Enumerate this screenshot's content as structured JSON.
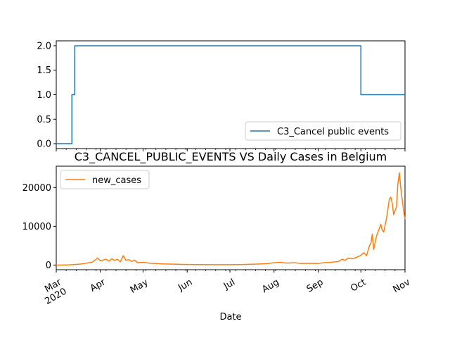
{
  "chart_data": [
    {
      "type": "line",
      "title": "",
      "xlabel": "",
      "ylabel": "",
      "ylim": [
        -0.1,
        2.1
      ],
      "xlim": [
        "2020-03-01",
        "2020-11-01"
      ],
      "yticks": [
        0.0,
        0.5,
        1.0,
        1.5,
        2.0
      ],
      "ytick_labels": [
        "0.0",
        "0.5",
        "1.0",
        "1.5",
        "2.0"
      ],
      "legend": "lower-right",
      "series": [
        {
          "name": "C3_Cancel public events",
          "color": "#1f77b4",
          "step": true,
          "points": [
            [
              "2020-03-01",
              0
            ],
            [
              "2020-03-12",
              0
            ],
            [
              "2020-03-12",
              1
            ],
            [
              "2020-03-14",
              1
            ],
            [
              "2020-03-14",
              2
            ],
            [
              "2020-10-01",
              2
            ],
            [
              "2020-10-01",
              1
            ],
            [
              "2020-11-01",
              1
            ]
          ]
        }
      ]
    },
    {
      "type": "line",
      "title": "C3_CANCEL_PUBLIC_EVENTS VS Daily Cases in Belgium",
      "xlabel": "Date",
      "ylabel": "",
      "ylim": [
        -1200,
        25500
      ],
      "xlim": [
        "2020-03-01",
        "2020-11-01"
      ],
      "yticks": [
        0,
        10000,
        20000
      ],
      "ytick_labels": [
        "0",
        "10000",
        "20000"
      ],
      "xticks": [
        "2020-03-01",
        "2020-04-01",
        "2020-05-01",
        "2020-06-01",
        "2020-07-01",
        "2020-08-01",
        "2020-09-01",
        "2020-10-01",
        "2020-11-01"
      ],
      "xtick_labels": [
        "Mar\n2020",
        "Apr",
        "May",
        "Jun",
        "Jul",
        "Aug",
        "Sep",
        "Oct",
        "Nov"
      ],
      "legend": "upper-left",
      "series": [
        {
          "name": "new_cases",
          "color": "#ff7f0e",
          "points": [
            [
              "2020-03-01",
              0
            ],
            [
              "2020-03-05",
              10
            ],
            [
              "2020-03-10",
              50
            ],
            [
              "2020-03-14",
              150
            ],
            [
              "2020-03-18",
              250
            ],
            [
              "2020-03-21",
              400
            ],
            [
              "2020-03-24",
              600
            ],
            [
              "2020-03-26",
              700
            ],
            [
              "2020-03-28",
              1200
            ],
            [
              "2020-03-30",
              1800
            ],
            [
              "2020-04-01",
              1100
            ],
            [
              "2020-04-03",
              1300
            ],
            [
              "2020-04-05",
              1500
            ],
            [
              "2020-04-07",
              1000
            ],
            [
              "2020-04-09",
              1600
            ],
            [
              "2020-04-11",
              1200
            ],
            [
              "2020-04-13",
              1500
            ],
            [
              "2020-04-15",
              800
            ],
            [
              "2020-04-17",
              2400
            ],
            [
              "2020-04-19",
              1200
            ],
            [
              "2020-04-21",
              1400
            ],
            [
              "2020-04-23",
              900
            ],
            [
              "2020-04-25",
              1300
            ],
            [
              "2020-04-27",
              600
            ],
            [
              "2020-05-01",
              700
            ],
            [
              "2020-05-05",
              500
            ],
            [
              "2020-05-10",
              400
            ],
            [
              "2020-05-15",
              300
            ],
            [
              "2020-05-20",
              250
            ],
            [
              "2020-05-25",
              200
            ],
            [
              "2020-06-01",
              150
            ],
            [
              "2020-06-10",
              120
            ],
            [
              "2020-06-20",
              100
            ],
            [
              "2020-07-01",
              100
            ],
            [
              "2020-07-10",
              150
            ],
            [
              "2020-07-20",
              250
            ],
            [
              "2020-07-28",
              400
            ],
            [
              "2020-08-01",
              600
            ],
            [
              "2020-08-05",
              700
            ],
            [
              "2020-08-10",
              500
            ],
            [
              "2020-08-15",
              600
            ],
            [
              "2020-08-20",
              400
            ],
            [
              "2020-08-25",
              450
            ],
            [
              "2020-09-01",
              400
            ],
            [
              "2020-09-05",
              600
            ],
            [
              "2020-09-10",
              700
            ],
            [
              "2020-09-15",
              900
            ],
            [
              "2020-09-18",
              1500
            ],
            [
              "2020-09-20",
              1200
            ],
            [
              "2020-09-22",
              1800
            ],
            [
              "2020-09-25",
              1600
            ],
            [
              "2020-09-28",
              2000
            ],
            [
              "2020-10-01",
              2500
            ],
            [
              "2020-10-03",
              3200
            ],
            [
              "2020-10-05",
              2400
            ],
            [
              "2020-10-07",
              5000
            ],
            [
              "2020-10-08",
              5500
            ],
            [
              "2020-10-09",
              8000
            ],
            [
              "2020-10-10",
              4000
            ],
            [
              "2020-10-12",
              7500
            ],
            [
              "2020-10-14",
              9500
            ],
            [
              "2020-10-15",
              10500
            ],
            [
              "2020-10-16",
              9000
            ],
            [
              "2020-10-17",
              8500
            ],
            [
              "2020-10-19",
              12000
            ],
            [
              "2020-10-21",
              17000
            ],
            [
              "2020-10-22",
              17500
            ],
            [
              "2020-10-23",
              16000
            ],
            [
              "2020-10-24",
              13000
            ],
            [
              "2020-10-26",
              15000
            ],
            [
              "2020-10-27",
              21000
            ],
            [
              "2020-10-28",
              23800
            ],
            [
              "2020-10-29",
              20000
            ],
            [
              "2020-10-30",
              17000
            ],
            [
              "2020-10-31",
              14000
            ],
            [
              "2020-11-01",
              11800
            ]
          ]
        }
      ]
    }
  ]
}
